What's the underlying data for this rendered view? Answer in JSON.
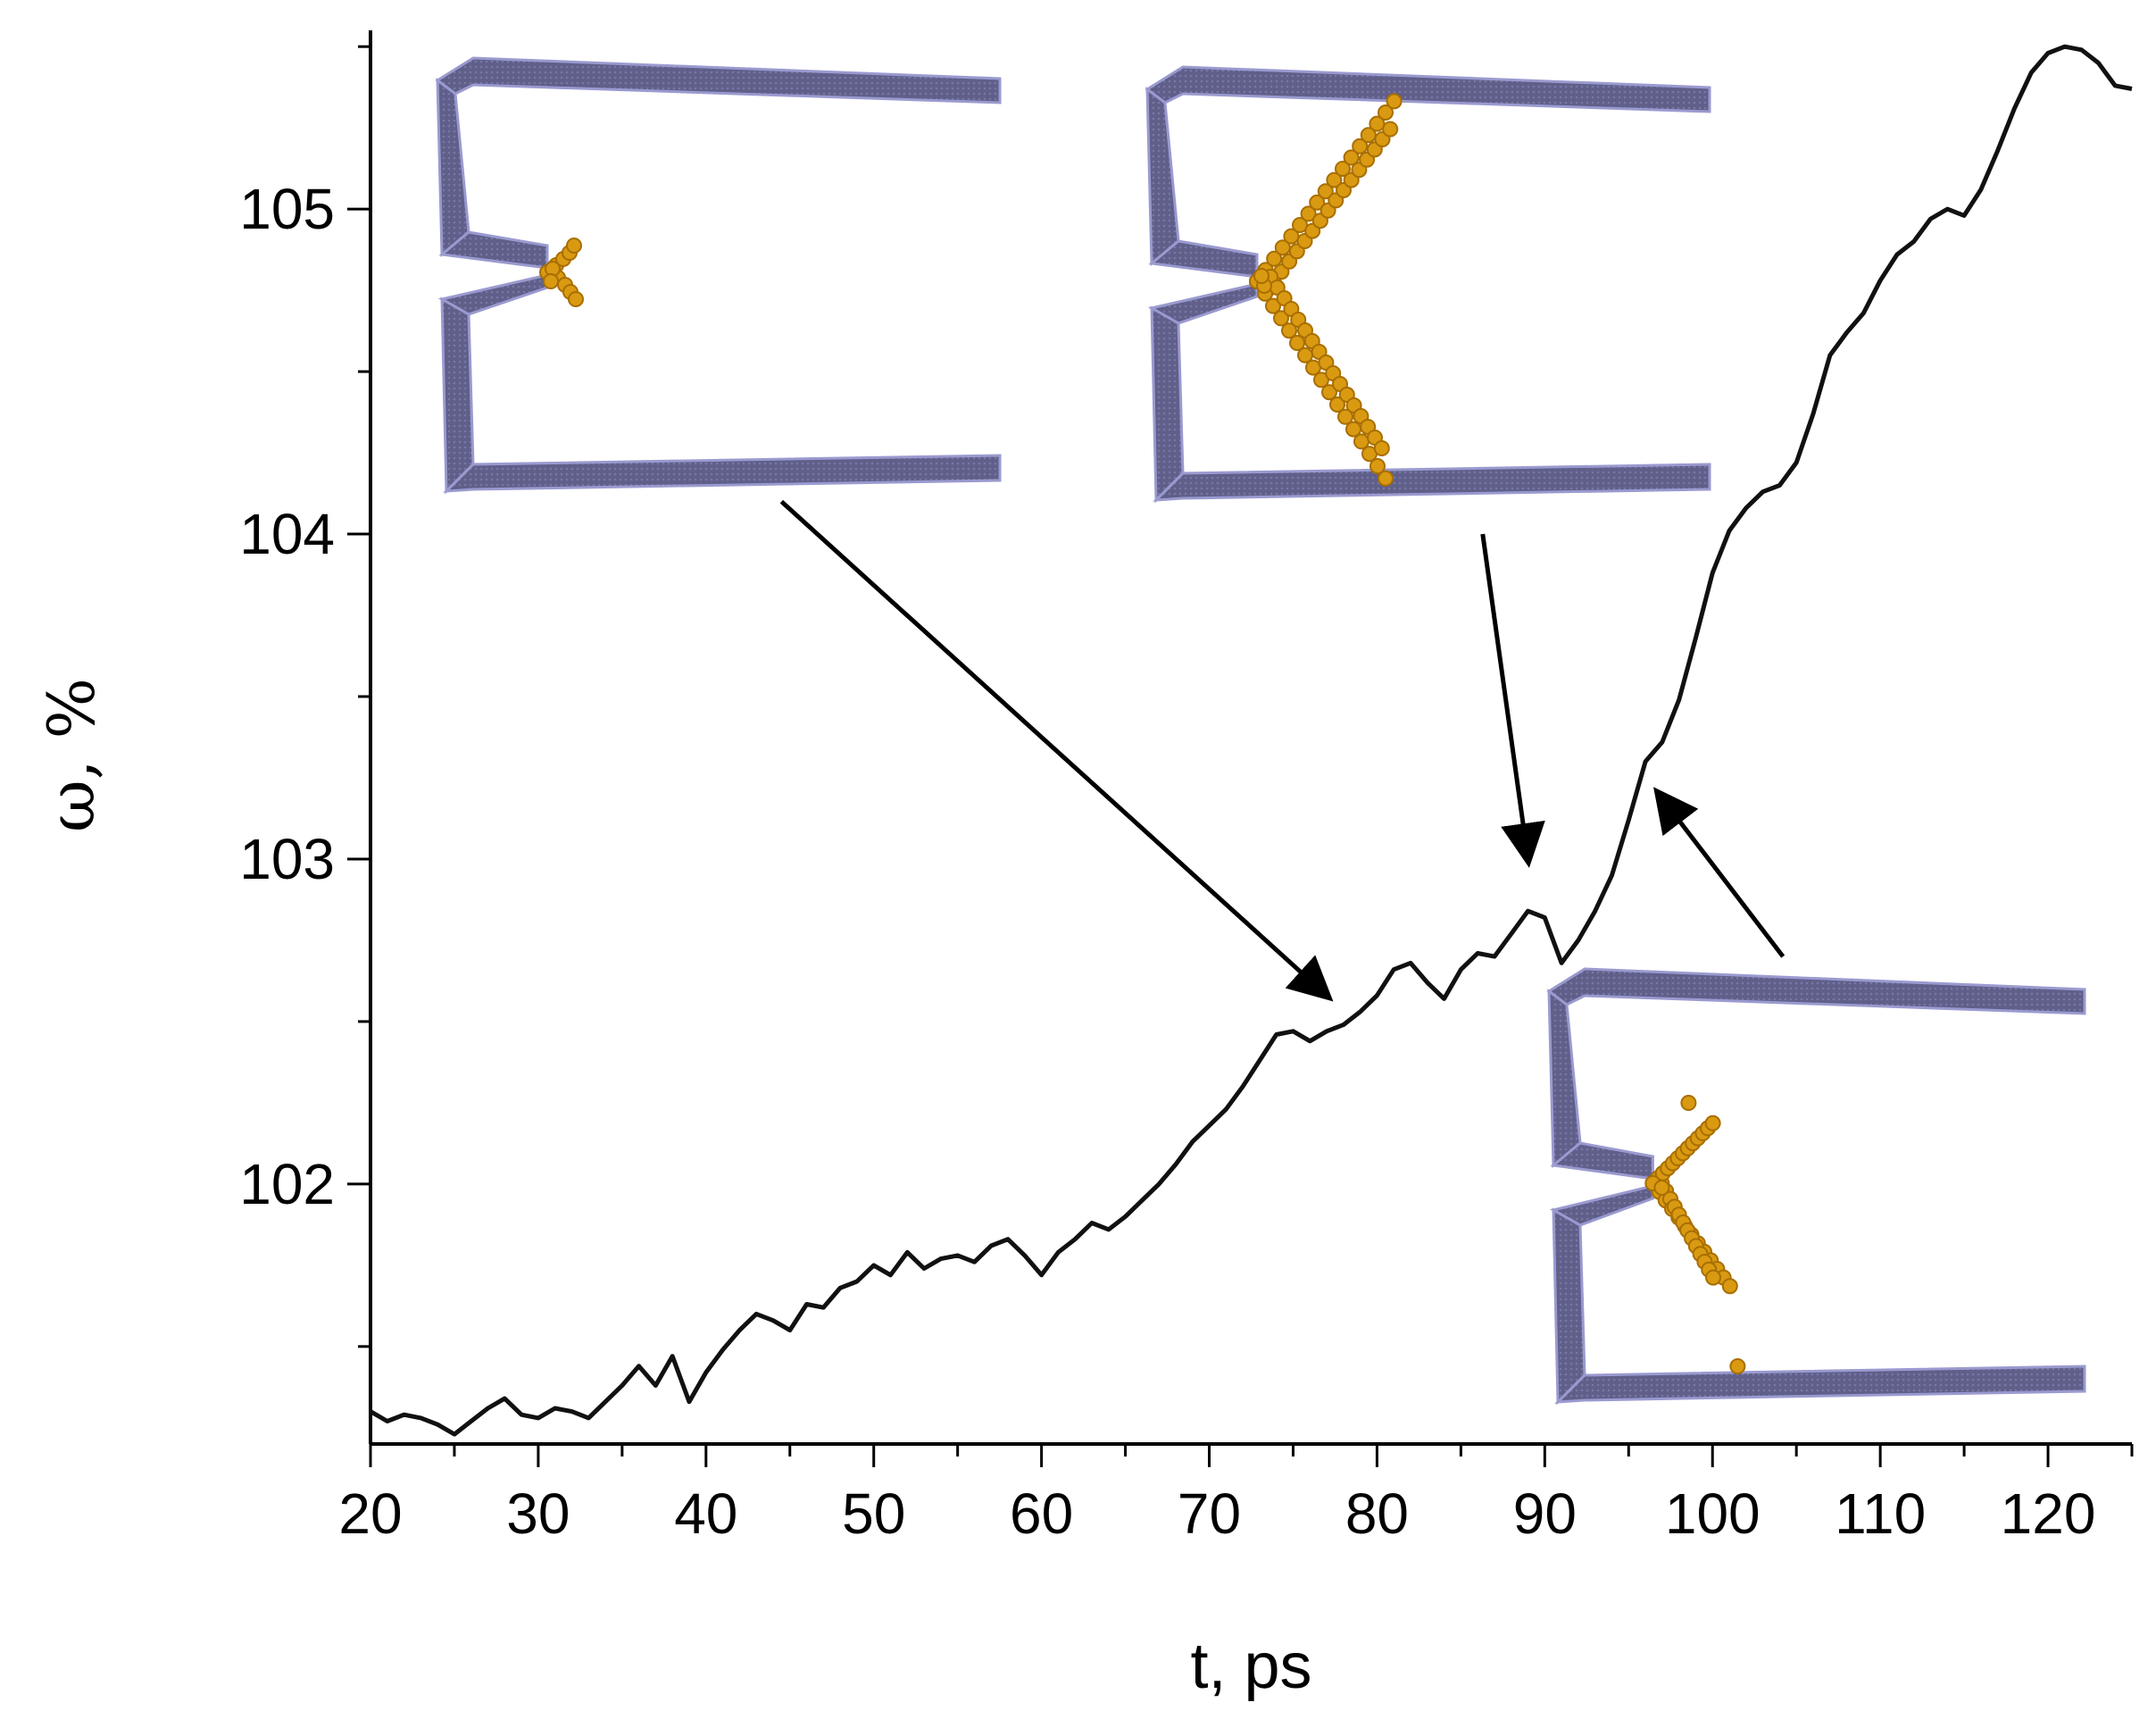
{
  "chart_data": {
    "type": "line",
    "xlabel": "t, ps",
    "ylabel": "ω, %",
    "xlim": [
      20,
      125
    ],
    "ylim": [
      101.2,
      105.55
    ],
    "x_ticks": [
      20,
      30,
      40,
      50,
      60,
      70,
      80,
      90,
      100,
      110,
      120
    ],
    "y_ticks": [
      102,
      103,
      104,
      105
    ],
    "grid": false,
    "series": [
      {
        "color": "#111111",
        "x": [
          20,
          21,
          22,
          23,
          24,
          25,
          26,
          27,
          28,
          29,
          30,
          31,
          32,
          33,
          34,
          35,
          36,
          37,
          38,
          39,
          40,
          41,
          42,
          43,
          44,
          45,
          46,
          47,
          48,
          49,
          50,
          51,
          52,
          53,
          54,
          55,
          56,
          57,
          58,
          59,
          60,
          61,
          62,
          63,
          64,
          65,
          66,
          67,
          68,
          69,
          70,
          71,
          72,
          73,
          74,
          75,
          76,
          77,
          78,
          79,
          80,
          81,
          82,
          83,
          84,
          85,
          86,
          87,
          88,
          89,
          90,
          91,
          92,
          93,
          94,
          95,
          96,
          97,
          98,
          99,
          100,
          101,
          102,
          103,
          104,
          105,
          106,
          107,
          108,
          109,
          110,
          111,
          112,
          113,
          114,
          115,
          116,
          117,
          118,
          119,
          120,
          121,
          122,
          123,
          124,
          125
        ],
        "y": [
          101.3,
          101.27,
          101.29,
          101.28,
          101.26,
          101.23,
          101.27,
          101.31,
          101.34,
          101.29,
          101.28,
          101.31,
          101.3,
          101.28,
          101.33,
          101.38,
          101.44,
          101.38,
          101.47,
          101.33,
          101.42,
          101.49,
          101.55,
          101.6,
          101.58,
          101.55,
          101.63,
          101.62,
          101.68,
          101.7,
          101.75,
          101.72,
          101.79,
          101.74,
          101.77,
          101.78,
          101.76,
          101.81,
          101.83,
          101.78,
          101.72,
          101.79,
          101.83,
          101.88,
          101.86,
          101.9,
          101.95,
          102.0,
          102.06,
          102.13,
          102.18,
          102.23,
          102.3,
          102.38,
          102.46,
          102.47,
          102.44,
          102.47,
          102.49,
          102.53,
          102.58,
          102.66,
          102.68,
          102.62,
          102.57,
          102.66,
          102.71,
          102.7,
          102.77,
          102.84,
          102.82,
          102.68,
          102.75,
          102.84,
          102.95,
          103.12,
          103.3,
          103.36,
          103.49,
          103.68,
          103.88,
          104.01,
          104.08,
          104.13,
          104.15,
          104.22,
          104.37,
          104.55,
          104.62,
          104.68,
          104.78,
          104.86,
          104.9,
          104.97,
          105.0,
          104.98,
          105.06,
          105.18,
          105.31,
          105.42,
          105.48,
          105.5,
          105.49,
          105.45,
          105.38,
          105.37
        ]
      }
    ],
    "arrows": [
      {
        "from": [
          44.5,
          104.1
        ],
        "to": [
          77,
          102.58
        ]
      },
      {
        "from": [
          86.3,
          104.0
        ],
        "to": [
          89,
          103.0
        ]
      },
      {
        "from": [
          104.2,
          102.7
        ],
        "to": [
          96.8,
          103.2
        ]
      }
    ],
    "insets": [
      {
        "position": "top-left",
        "has_crack": true,
        "crack": "small"
      },
      {
        "position": "top-center",
        "has_crack": true,
        "crack": "large"
      },
      {
        "position": "bottom-right",
        "has_crack": true,
        "crack": "medium"
      }
    ]
  }
}
